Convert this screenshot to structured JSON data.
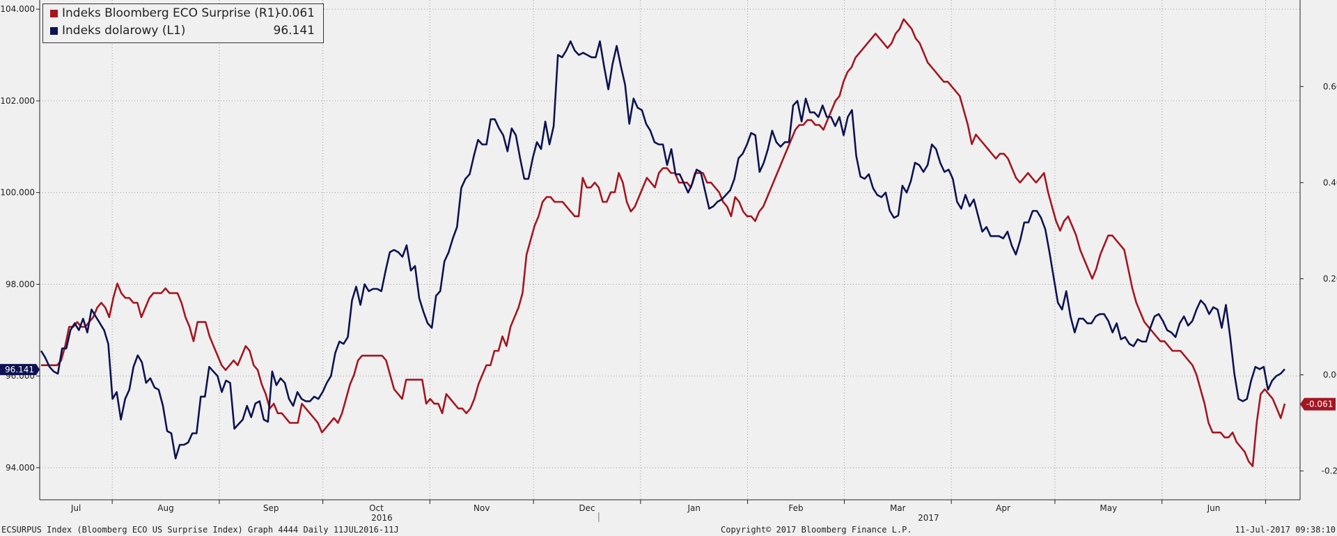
{
  "colors": {
    "eco": "#a31621",
    "usd": "#0d1350",
    "axis": "#222222",
    "grid": "#9a9a9a"
  },
  "legend": [
    {
      "name": "Indeks Bloomberg ECO Surprise (R1)",
      "value": "-0.061"
    },
    {
      "name": "Indeks dolarowy (L1)",
      "value": "96.141"
    }
  ],
  "footer": {
    "left": "ECSURPUS Index (Bloomberg ECO US Surprise Index) Graph 4444  Daily 11JUL2016-11J",
    "center": "Copyright© 2017 Bloomberg Finance L.P.",
    "right": "11-Jul-2017 09:38:10"
  },
  "chart_data": {
    "type": "line",
    "x_range": [
      "2016-07-11",
      "2017-07-11"
    ],
    "x_month_labels": [
      "Jul",
      "Aug",
      "Sep",
      "Oct",
      "Nov",
      "Dec",
      "Jan",
      "Feb",
      "Mar",
      "Apr",
      "May",
      "Jun"
    ],
    "x_year_labels": [
      "2016",
      "2017"
    ],
    "y_left": {
      "ticks": [
        "94.000",
        "96.000",
        "98.000",
        "100.000",
        "102.000",
        "104.000"
      ],
      "min": 93.3,
      "max": 104.2
    },
    "y_right": {
      "ticks": [
        "-0.200",
        "0.000",
        "0.200",
        "0.400",
        "0.600"
      ],
      "min": -0.26,
      "max": 0.78
    },
    "grid": true,
    "legend_position": "top-left",
    "last_value_badges": {
      "left": "96.141",
      "right": "-0.061"
    },
    "series": [
      {
        "name": "Indeks dolarowy (L1)",
        "axis": "left",
        "color": "#0d1350",
        "values": [
          96.55,
          96.4,
          96.2,
          96.1,
          96.05,
          96.6,
          96.6,
          97.0,
          97.15,
          97.0,
          97.25,
          96.95,
          97.45,
          97.3,
          97.15,
          97.0,
          96.7,
          95.5,
          95.65,
          95.05,
          95.5,
          95.7,
          96.2,
          96.45,
          96.3,
          95.85,
          95.95,
          95.75,
          95.7,
          95.35,
          94.8,
          94.75,
          94.2,
          94.5,
          94.5,
          94.55,
          94.75,
          94.75,
          95.55,
          95.55,
          96.2,
          96.1,
          96.0,
          95.65,
          95.9,
          95.85,
          94.85,
          94.95,
          95.05,
          95.35,
          95.1,
          95.4,
          95.45,
          95.05,
          95.0,
          96.1,
          95.8,
          95.95,
          95.85,
          95.5,
          95.35,
          95.65,
          95.5,
          95.45,
          95.45,
          95.55,
          95.5,
          95.65,
          95.85,
          96.0,
          96.5,
          96.75,
          96.7,
          96.85,
          97.65,
          97.95,
          97.55,
          98.0,
          97.85,
          97.9,
          97.9,
          97.85,
          98.3,
          98.7,
          98.75,
          98.7,
          98.6,
          98.85,
          98.3,
          98.4,
          97.7,
          97.4,
          97.15,
          97.05,
          97.75,
          97.85,
          98.5,
          98.7,
          99.0,
          99.25,
          100.1,
          100.3,
          100.4,
          100.8,
          101.15,
          101.05,
          101.05,
          101.6,
          101.6,
          101.4,
          101.25,
          100.9,
          101.4,
          101.25,
          100.75,
          100.3,
          100.3,
          100.75,
          101.1,
          100.95,
          101.55,
          101.05,
          101.45,
          103.0,
          102.95,
          103.1,
          103.3,
          103.1,
          103.0,
          103.05,
          103.0,
          102.95,
          102.95,
          103.3,
          102.75,
          102.25,
          102.8,
          103.2,
          102.75,
          102.35,
          101.5,
          102.05,
          101.85,
          101.8,
          101.5,
          101.35,
          101.1,
          101.05,
          101.05,
          100.6,
          100.95,
          100.4,
          100.4,
          100.2,
          100.0,
          100.2,
          100.5,
          100.45,
          100.05,
          99.65,
          99.7,
          99.8,
          99.85,
          99.95,
          100.05,
          100.3,
          100.75,
          100.85,
          101.05,
          101.3,
          101.25,
          100.45,
          100.65,
          100.95,
          101.35,
          101.1,
          101.0,
          101.1,
          101.1,
          101.9,
          102.0,
          101.55,
          102.05,
          101.75,
          101.75,
          101.65,
          101.9,
          101.65,
          101.65,
          101.45,
          101.65,
          101.25,
          101.65,
          101.8,
          100.8,
          100.35,
          100.3,
          100.4,
          100.1,
          99.95,
          99.9,
          100.0,
          99.6,
          99.45,
          99.5,
          100.15,
          100.0,
          100.25,
          100.65,
          100.6,
          100.45,
          100.6,
          101.05,
          100.95,
          100.65,
          100.45,
          100.5,
          100.3,
          99.8,
          99.65,
          99.95,
          99.7,
          99.85,
          99.5,
          99.15,
          99.25,
          99.05,
          99.05,
          99.05,
          99.0,
          99.15,
          98.85,
          98.65,
          98.95,
          99.35,
          99.35,
          99.6,
          99.6,
          99.45,
          99.2,
          98.7,
          98.15,
          97.6,
          97.45,
          97.85,
          97.3,
          96.95,
          97.25,
          97.25,
          97.15,
          97.15,
          97.3,
          97.35,
          97.35,
          97.2,
          96.95,
          97.15,
          96.8,
          96.85,
          96.7,
          96.65,
          96.8,
          96.75,
          96.75,
          97.05,
          97.3,
          97.35,
          97.2,
          97.0,
          96.95,
          96.85,
          97.15,
          97.3,
          97.1,
          97.2,
          97.45,
          97.65,
          97.55,
          97.35,
          97.5,
          97.45,
          97.05,
          97.55,
          96.85,
          96.05,
          95.5,
          95.45,
          95.5,
          95.9,
          96.2,
          96.15,
          96.2,
          95.7,
          95.9,
          96.0,
          96.05,
          96.15
        ]
      },
      {
        "name": "Indeks Bloomberg ECO Surprise (R1)",
        "axis": "right",
        "color": "#a31621",
        "values": [
          0.02,
          0.02,
          0.02,
          0.02,
          0.02,
          0.03,
          0.06,
          0.1,
          0.1,
          0.11,
          0.1,
          0.1,
          0.11,
          0.12,
          0.14,
          0.15,
          0.14,
          0.12,
          0.16,
          0.19,
          0.17,
          0.16,
          0.16,
          0.15,
          0.15,
          0.12,
          0.14,
          0.16,
          0.17,
          0.17,
          0.17,
          0.18,
          0.17,
          0.17,
          0.17,
          0.15,
          0.12,
          0.1,
          0.07,
          0.11,
          0.11,
          0.11,
          0.08,
          0.06,
          0.04,
          0.02,
          0.01,
          0.02,
          0.03,
          0.02,
          0.04,
          0.06,
          0.05,
          0.02,
          0.01,
          -0.02,
          -0.04,
          -0.07,
          -0.06,
          -0.08,
          -0.08,
          -0.09,
          -0.1,
          -0.1,
          -0.1,
          -0.06,
          -0.07,
          -0.08,
          -0.09,
          -0.1,
          -0.12,
          -0.11,
          -0.1,
          -0.09,
          -0.1,
          -0.08,
          -0.05,
          -0.02,
          0.0,
          0.03,
          0.04,
          0.04,
          0.04,
          0.04,
          0.04,
          0.04,
          0.03,
          0.0,
          -0.03,
          -0.04,
          -0.05,
          -0.01,
          -0.01,
          -0.01,
          -0.01,
          -0.01,
          -0.06,
          -0.05,
          -0.06,
          -0.06,
          -0.08,
          -0.04,
          -0.05,
          -0.06,
          -0.07,
          -0.07,
          -0.08,
          -0.07,
          -0.05,
          -0.02,
          0.0,
          0.02,
          0.02,
          0.05,
          0.05,
          0.08,
          0.06,
          0.1,
          0.12,
          0.14,
          0.17,
          0.25,
          0.28,
          0.31,
          0.33,
          0.36,
          0.37,
          0.37,
          0.36,
          0.36,
          0.36,
          0.35,
          0.34,
          0.33,
          0.33,
          0.41,
          0.39,
          0.39,
          0.4,
          0.39,
          0.36,
          0.36,
          0.38,
          0.38,
          0.42,
          0.4,
          0.36,
          0.34,
          0.35,
          0.37,
          0.39,
          0.41,
          0.4,
          0.39,
          0.42,
          0.43,
          0.43,
          0.42,
          0.42,
          0.4,
          0.4,
          0.4,
          0.39,
          0.42,
          0.42,
          0.42,
          0.4,
          0.4,
          0.39,
          0.38,
          0.36,
          0.35,
          0.33,
          0.37,
          0.36,
          0.34,
          0.33,
          0.33,
          0.32,
          0.34,
          0.35,
          0.37,
          0.39,
          0.41,
          0.43,
          0.45,
          0.47,
          0.49,
          0.51,
          0.52,
          0.52,
          0.53,
          0.53,
          0.52,
          0.52,
          0.51,
          0.53,
          0.55,
          0.57,
          0.58,
          0.61,
          0.63,
          0.64,
          0.66,
          0.67,
          0.68,
          0.69,
          0.7,
          0.71,
          0.7,
          0.69,
          0.68,
          0.69,
          0.71,
          0.72,
          0.74,
          0.73,
          0.72,
          0.7,
          0.69,
          0.67,
          0.65,
          0.64,
          0.63,
          0.62,
          0.61,
          0.61,
          0.6,
          0.59,
          0.58,
          0.55,
          0.52,
          0.48,
          0.5,
          0.49,
          0.48,
          0.47,
          0.46,
          0.45,
          0.46,
          0.46,
          0.45,
          0.43,
          0.41,
          0.4,
          0.41,
          0.42,
          0.41,
          0.4,
          0.41,
          0.42,
          0.38,
          0.35,
          0.32,
          0.3,
          0.32,
          0.33,
          0.31,
          0.29,
          0.26,
          0.24,
          0.22,
          0.2,
          0.22,
          0.25,
          0.27,
          0.29,
          0.29,
          0.28,
          0.27,
          0.26,
          0.22,
          0.18,
          0.15,
          0.13,
          0.11,
          0.1,
          0.09,
          0.08,
          0.07,
          0.07,
          0.06,
          0.05,
          0.05,
          0.05,
          0.04,
          0.03,
          0.02,
          0.0,
          -0.03,
          -0.06,
          -0.1,
          -0.12,
          -0.12,
          -0.12,
          -0.13,
          -0.13,
          -0.12,
          -0.14,
          -0.15,
          -0.16,
          -0.18,
          -0.19,
          -0.1,
          -0.04,
          -0.03,
          -0.04,
          -0.05,
          -0.07,
          -0.09,
          -0.06
        ]
      }
    ]
  }
}
